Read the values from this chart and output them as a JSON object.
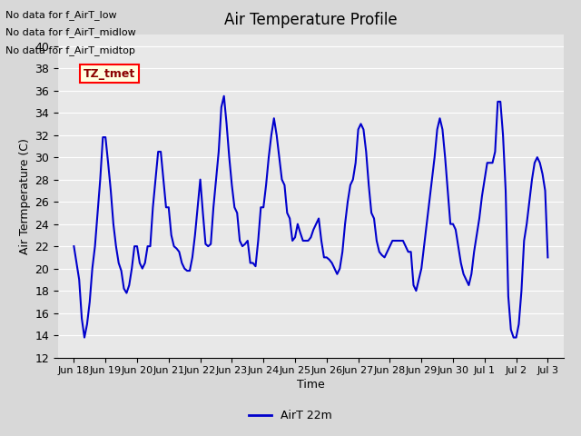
{
  "title": "Air Temperature Profile",
  "xlabel": "Time",
  "ylabel": "Air Termperature (C)",
  "ylim": [
    12,
    41
  ],
  "yticks": [
    12,
    14,
    16,
    18,
    20,
    22,
    24,
    26,
    28,
    30,
    32,
    34,
    36,
    38,
    40
  ],
  "line_color": "#0000cc",
  "line_width": 1.5,
  "legend_label": "AirT 22m",
  "annotations": [
    "No data for f_AirT_low",
    "No data for f_AirT_midlow",
    "No data for f_AirT_midtop"
  ],
  "tz_label": "TZ_tmet",
  "background_color": "#e8e8e8",
  "plot_background": "#e8e8e8",
  "x_tick_labels": [
    "Jun 18",
    "Jun 19",
    "Jun 20",
    "Jun 21",
    "Jun 22",
    "Jun 23",
    "Jun 24",
    "Jun 25",
    "Jun 26",
    "Jun 27",
    "Jun 28",
    "Jun 29",
    "Jun 30",
    "Jul 1",
    "Jul 2",
    "Jul 3"
  ],
  "x_tick_positions": [
    0,
    1,
    2,
    3,
    4,
    5,
    6,
    7,
    8,
    9,
    10,
    11,
    12,
    13,
    14,
    15
  ],
  "data_x": [
    0.0,
    0.083,
    0.167,
    0.25,
    0.333,
    0.417,
    0.5,
    0.583,
    0.667,
    0.75,
    0.833,
    0.917,
    1.0,
    1.083,
    1.167,
    1.25,
    1.333,
    1.417,
    1.5,
    1.583,
    1.667,
    1.75,
    1.833,
    1.917,
    2.0,
    2.083,
    2.167,
    2.25,
    2.333,
    2.417,
    2.5,
    2.583,
    2.667,
    2.75,
    2.833,
    2.917,
    3.0,
    3.083,
    3.167,
    3.25,
    3.333,
    3.417,
    3.5,
    3.583,
    3.667,
    3.75,
    3.833,
    3.917,
    4.0,
    4.083,
    4.167,
    4.25,
    4.333,
    4.417,
    4.5,
    4.583,
    4.667,
    4.75,
    4.833,
    4.917,
    5.0,
    5.083,
    5.167,
    5.25,
    5.333,
    5.417,
    5.5,
    5.583,
    5.667,
    5.75,
    5.833,
    5.917,
    6.0,
    6.083,
    6.167,
    6.25,
    6.333,
    6.417,
    6.5,
    6.583,
    6.667,
    6.75,
    6.833,
    6.917,
    7.0,
    7.083,
    7.167,
    7.25,
    7.333,
    7.417,
    7.5,
    7.583,
    7.667,
    7.75,
    7.833,
    7.917,
    8.0,
    8.083,
    8.167,
    8.25,
    8.333,
    8.417,
    8.5,
    8.583,
    8.667,
    8.75,
    8.833,
    8.917,
    9.0,
    9.083,
    9.167,
    9.25,
    9.333,
    9.417,
    9.5,
    9.583,
    9.667,
    9.75,
    9.833,
    9.917,
    10.0,
    10.083,
    10.167,
    10.25,
    10.333,
    10.417,
    10.5,
    10.583,
    10.667,
    10.75,
    10.833,
    10.917,
    11.0,
    11.083,
    11.167,
    11.25,
    11.333,
    11.417,
    11.5,
    11.583,
    11.667,
    11.75,
    11.833,
    11.917,
    12.0,
    12.083,
    12.167,
    12.25,
    12.333,
    12.417,
    12.5,
    12.583,
    12.667,
    12.75,
    12.833,
    12.917,
    13.0,
    13.083,
    13.167,
    13.25,
    13.333,
    13.417,
    13.5,
    13.583,
    13.667,
    13.75,
    13.833,
    13.917,
    14.0,
    14.083,
    14.167,
    14.25,
    14.333,
    14.417,
    14.5,
    14.583,
    14.667,
    14.75,
    14.833,
    14.917,
    15.0
  ],
  "data_y": [
    22.0,
    20.5,
    19.0,
    15.5,
    13.8,
    15.0,
    17.0,
    20.0,
    22.0,
    25.0,
    28.0,
    31.8,
    31.8,
    29.5,
    27.0,
    24.0,
    22.0,
    20.5,
    19.8,
    18.2,
    17.8,
    18.5,
    20.0,
    22.0,
    22.0,
    20.5,
    20.0,
    20.5,
    22.0,
    22.0,
    25.5,
    28.0,
    30.5,
    30.5,
    28.0,
    25.5,
    25.5,
    23.0,
    22.0,
    21.8,
    21.5,
    20.5,
    20.0,
    19.8,
    19.8,
    21.0,
    23.0,
    25.5,
    28.0,
    25.0,
    22.2,
    22.0,
    22.2,
    25.5,
    28.0,
    30.5,
    34.5,
    35.5,
    33.0,
    30.0,
    27.5,
    25.5,
    25.0,
    22.5,
    22.0,
    22.2,
    22.5,
    20.5,
    20.5,
    20.2,
    22.5,
    25.5,
    25.5,
    27.5,
    30.0,
    32.0,
    33.5,
    32.0,
    30.0,
    28.0,
    27.5,
    25.0,
    24.5,
    22.5,
    22.8,
    24.0,
    23.2,
    22.5,
    22.5,
    22.5,
    22.8,
    23.5,
    24.0,
    24.5,
    22.5,
    21.0,
    21.0,
    20.8,
    20.5,
    20.0,
    19.5,
    20.0,
    21.5,
    24.0,
    26.0,
    27.5,
    28.0,
    29.5,
    32.5,
    33.0,
    32.5,
    30.5,
    27.5,
    25.0,
    24.5,
    22.5,
    21.5,
    21.2,
    21.0,
    21.5,
    22.0,
    22.5,
    22.5,
    22.5,
    22.5,
    22.5,
    22.0,
    21.5,
    21.5,
    18.5,
    18.0,
    19.0,
    20.0,
    22.0,
    24.0,
    26.0,
    28.0,
    30.0,
    32.5,
    33.5,
    32.5,
    30.0,
    27.0,
    24.0,
    24.0,
    23.5,
    22.0,
    20.5,
    19.5,
    19.0,
    18.5,
    19.5,
    21.5,
    23.0,
    24.5,
    26.5,
    28.0,
    29.5,
    29.5,
    29.5,
    30.5,
    35.0,
    35.0,
    32.0,
    27.0,
    17.5,
    14.5,
    13.8,
    13.8,
    15.0,
    18.0,
    22.5,
    24.0,
    26.0,
    28.0,
    29.5,
    30.0,
    29.5,
    28.5,
    27.0,
    21.0
  ]
}
